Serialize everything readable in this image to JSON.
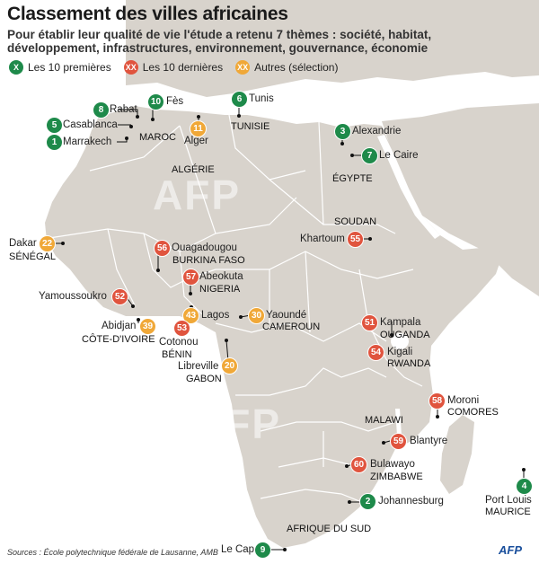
{
  "title": "Classement des villes africaines",
  "subtitle": "Pour établir leur qualité de vie l'étude a retenu 7 thèmes : société, habitat, développement, infrastructures, environnement, gouvernance, économie",
  "legend": [
    {
      "symbol": "X",
      "label": "Les 10 premières",
      "color": "#1e8a4a"
    },
    {
      "symbol": "XX",
      "label": "Les 10 dernières",
      "color": "#e0543e"
    },
    {
      "symbol": "XX",
      "label": "Autres (sélection)",
      "color": "#f0a838"
    }
  ],
  "colors": {
    "top": "#1e8a4a",
    "bottom": "#e0543e",
    "other": "#f0a838",
    "land": "#d8d3cc",
    "sea": "#ffffff"
  },
  "cities": [
    {
      "rank": "8",
      "name": "Rabat",
      "cat": "top"
    },
    {
      "rank": "10",
      "name": "Fès",
      "cat": "top"
    },
    {
      "rank": "5",
      "name": "Casablanca",
      "cat": "top"
    },
    {
      "rank": "1",
      "name": "Marrakech",
      "cat": "top"
    },
    {
      "rank": "11",
      "name": "Alger",
      "cat": "other"
    },
    {
      "rank": "6",
      "name": "Tunis",
      "cat": "top"
    },
    {
      "rank": "3",
      "name": "Alexandrie",
      "cat": "top"
    },
    {
      "rank": "7",
      "name": "Le Caire",
      "cat": "top"
    },
    {
      "rank": "22",
      "name": "Dakar",
      "cat": "other"
    },
    {
      "rank": "55",
      "name": "Khartoum",
      "cat": "bottom"
    },
    {
      "rank": "56",
      "name": "Ouagadougou",
      "cat": "bottom"
    },
    {
      "rank": "57",
      "name": "Abeokuta",
      "cat": "bottom"
    },
    {
      "rank": "52",
      "name": "Yamoussoukro",
      "cat": "bottom"
    },
    {
      "rank": "39",
      "name": "Abidjan",
      "cat": "other"
    },
    {
      "rank": "43",
      "name": "Lagos",
      "cat": "other"
    },
    {
      "rank": "53",
      "name": "Cotonou",
      "cat": "bottom"
    },
    {
      "rank": "30",
      "name": "Yaoundé",
      "cat": "other"
    },
    {
      "rank": "51",
      "name": "Kampala",
      "cat": "bottom"
    },
    {
      "rank": "54",
      "name": "Kigali",
      "cat": "bottom"
    },
    {
      "rank": "20",
      "name": "Libreville",
      "cat": "other"
    },
    {
      "rank": "58",
      "name": "Moroni",
      "cat": "bottom"
    },
    {
      "rank": "59",
      "name": "Blantyre",
      "cat": "bottom"
    },
    {
      "rank": "60",
      "name": "Bulawayo",
      "cat": "bottom"
    },
    {
      "rank": "2",
      "name": "Johannesburg",
      "cat": "top"
    },
    {
      "rank": "4",
      "name": "Port Louis",
      "cat": "top"
    },
    {
      "rank": "9",
      "name": "Le Cap",
      "cat": "top"
    }
  ],
  "countries": [
    "MAROC",
    "TUNISIE",
    "ALGÉRIE",
    "ÉGYPTE",
    "SOUDAN",
    "SÉNÉGAL",
    "BURKINA FASO",
    "NIGERIA",
    "CÔTE-D'IVOIRE",
    "BÉNIN",
    "CAMEROUN",
    "OUGANDA",
    "RWANDA",
    "GABON",
    "COMORES",
    "MALAWI",
    "ZIMBABWE",
    "AFRIQUE DU SUD",
    "MAURICE"
  ],
  "source": "Sources : École polytechnique fédérale de Lausanne, AMB",
  "logo": "AFP",
  "watermark": "AFP"
}
